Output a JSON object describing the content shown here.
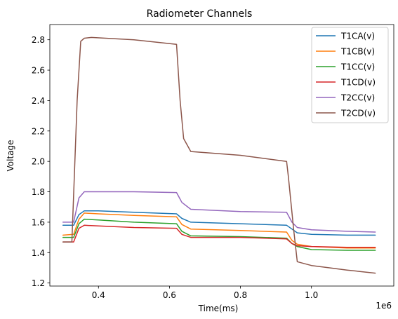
{
  "chart_data": {
    "type": "line",
    "title": "Radiometer Channels",
    "xlabel": "Time(ms)",
    "ylabel": "Voltage",
    "x_offset_label": "1e6",
    "xlim": [
      0.263,
      1.232
    ],
    "ylim": [
      1.18,
      2.9
    ],
    "xticks": [
      0.4,
      0.6,
      0.8,
      1.0
    ],
    "xtick_labels": [
      "0.4",
      "0.6",
      "0.8",
      "1.0"
    ],
    "yticks": [
      1.2,
      1.4,
      1.6,
      1.8,
      2.0,
      2.2,
      2.4,
      2.6,
      2.8
    ],
    "ytick_labels": [
      "1.2",
      "1.4",
      "1.6",
      "1.8",
      "2.0",
      "2.2",
      "2.4",
      "2.6",
      "2.8"
    ],
    "grid": false,
    "legend_position": "top-right",
    "series": [
      {
        "name": "T1CA(v)",
        "color": "#1f77b4",
        "x": [
          0.3,
          0.33,
          0.345,
          0.36,
          0.4,
          0.5,
          0.62,
          0.635,
          0.66,
          0.8,
          0.93,
          0.945,
          0.96,
          1.0,
          1.1,
          1.18
        ],
        "y": [
          1.58,
          1.58,
          1.65,
          1.675,
          1.675,
          1.665,
          1.655,
          1.625,
          1.6,
          1.59,
          1.58,
          1.555,
          1.53,
          1.52,
          1.515,
          1.515
        ]
      },
      {
        "name": "T1CB(v)",
        "color": "#ff7f0e",
        "x": [
          0.3,
          0.33,
          0.345,
          0.36,
          0.4,
          0.5,
          0.62,
          0.635,
          0.66,
          0.8,
          0.93,
          0.945,
          0.96,
          1.0,
          1.1,
          1.18
        ],
        "y": [
          1.515,
          1.52,
          1.62,
          1.66,
          1.655,
          1.645,
          1.635,
          1.585,
          1.555,
          1.545,
          1.535,
          1.48,
          1.455,
          1.44,
          1.43,
          1.43
        ]
      },
      {
        "name": "T1CC(v)",
        "color": "#2ca02c",
        "x": [
          0.3,
          0.33,
          0.345,
          0.36,
          0.4,
          0.5,
          0.62,
          0.635,
          0.66,
          0.8,
          0.93,
          0.945,
          0.96,
          1.0,
          1.1,
          1.18
        ],
        "y": [
          1.5,
          1.5,
          1.59,
          1.62,
          1.615,
          1.6,
          1.59,
          1.54,
          1.51,
          1.505,
          1.495,
          1.46,
          1.44,
          1.42,
          1.415,
          1.415
        ]
      },
      {
        "name": "T1CD(v)",
        "color": "#d62728",
        "x": [
          0.3,
          0.33,
          0.345,
          0.36,
          0.4,
          0.5,
          0.62,
          0.635,
          0.66,
          0.8,
          0.93,
          0.945,
          0.96,
          1.0,
          1.1,
          1.18
        ],
        "y": [
          1.47,
          1.47,
          1.56,
          1.58,
          1.575,
          1.565,
          1.56,
          1.52,
          1.5,
          1.5,
          1.49,
          1.46,
          1.445,
          1.44,
          1.435,
          1.435
        ]
      },
      {
        "name": "T2CC(v)",
        "color": "#9467bd",
        "x": [
          0.3,
          0.33,
          0.345,
          0.36,
          0.4,
          0.5,
          0.62,
          0.635,
          0.66,
          0.8,
          0.93,
          0.945,
          0.96,
          1.0,
          1.1,
          1.18
        ],
        "y": [
          1.6,
          1.6,
          1.76,
          1.8,
          1.8,
          1.8,
          1.795,
          1.73,
          1.685,
          1.67,
          1.665,
          1.6,
          1.565,
          1.55,
          1.54,
          1.535
        ]
      },
      {
        "name": "T2CD(v)",
        "color": "#8c564b",
        "x": [
          0.3,
          0.325,
          0.34,
          0.35,
          0.36,
          0.38,
          0.5,
          0.62,
          0.63,
          0.64,
          0.66,
          0.8,
          0.93,
          0.935,
          0.95,
          0.96,
          1.0,
          1.1,
          1.18
        ],
        "y": [
          1.47,
          1.47,
          2.4,
          2.79,
          2.81,
          2.815,
          2.8,
          2.77,
          2.4,
          2.15,
          2.065,
          2.04,
          2.0,
          1.9,
          1.55,
          1.34,
          1.315,
          1.285,
          1.265
        ]
      }
    ]
  }
}
